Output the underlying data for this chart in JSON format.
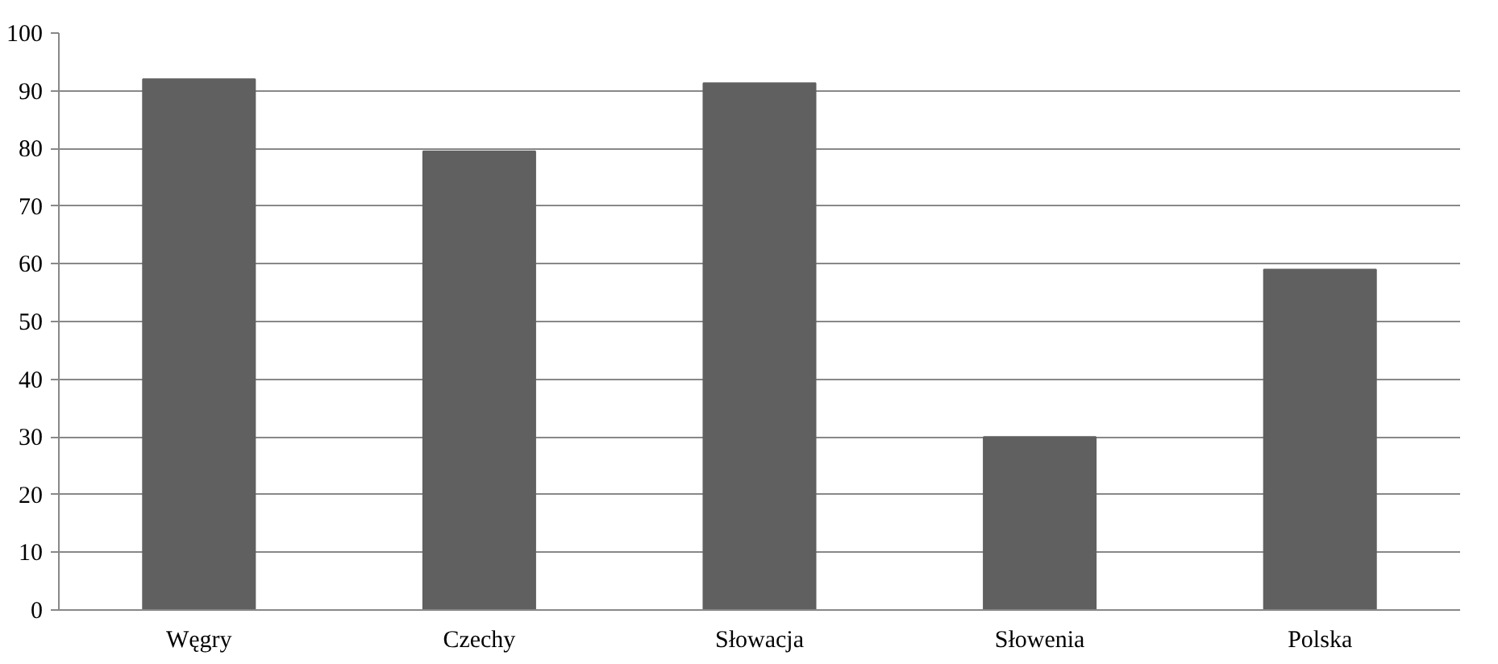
{
  "chart_data": {
    "type": "bar",
    "categories": [
      "Węgry",
      "Czechy",
      "Słowacja",
      "Słowenia",
      "Polska"
    ],
    "values": [
      92,
      79.5,
      91.3,
      30,
      59
    ],
    "color": "#606060",
    "ylim": [
      0,
      100
    ],
    "yticks": [
      0,
      10,
      20,
      30,
      40,
      50,
      60,
      70,
      80,
      90,
      100
    ],
    "grid": "y"
  }
}
